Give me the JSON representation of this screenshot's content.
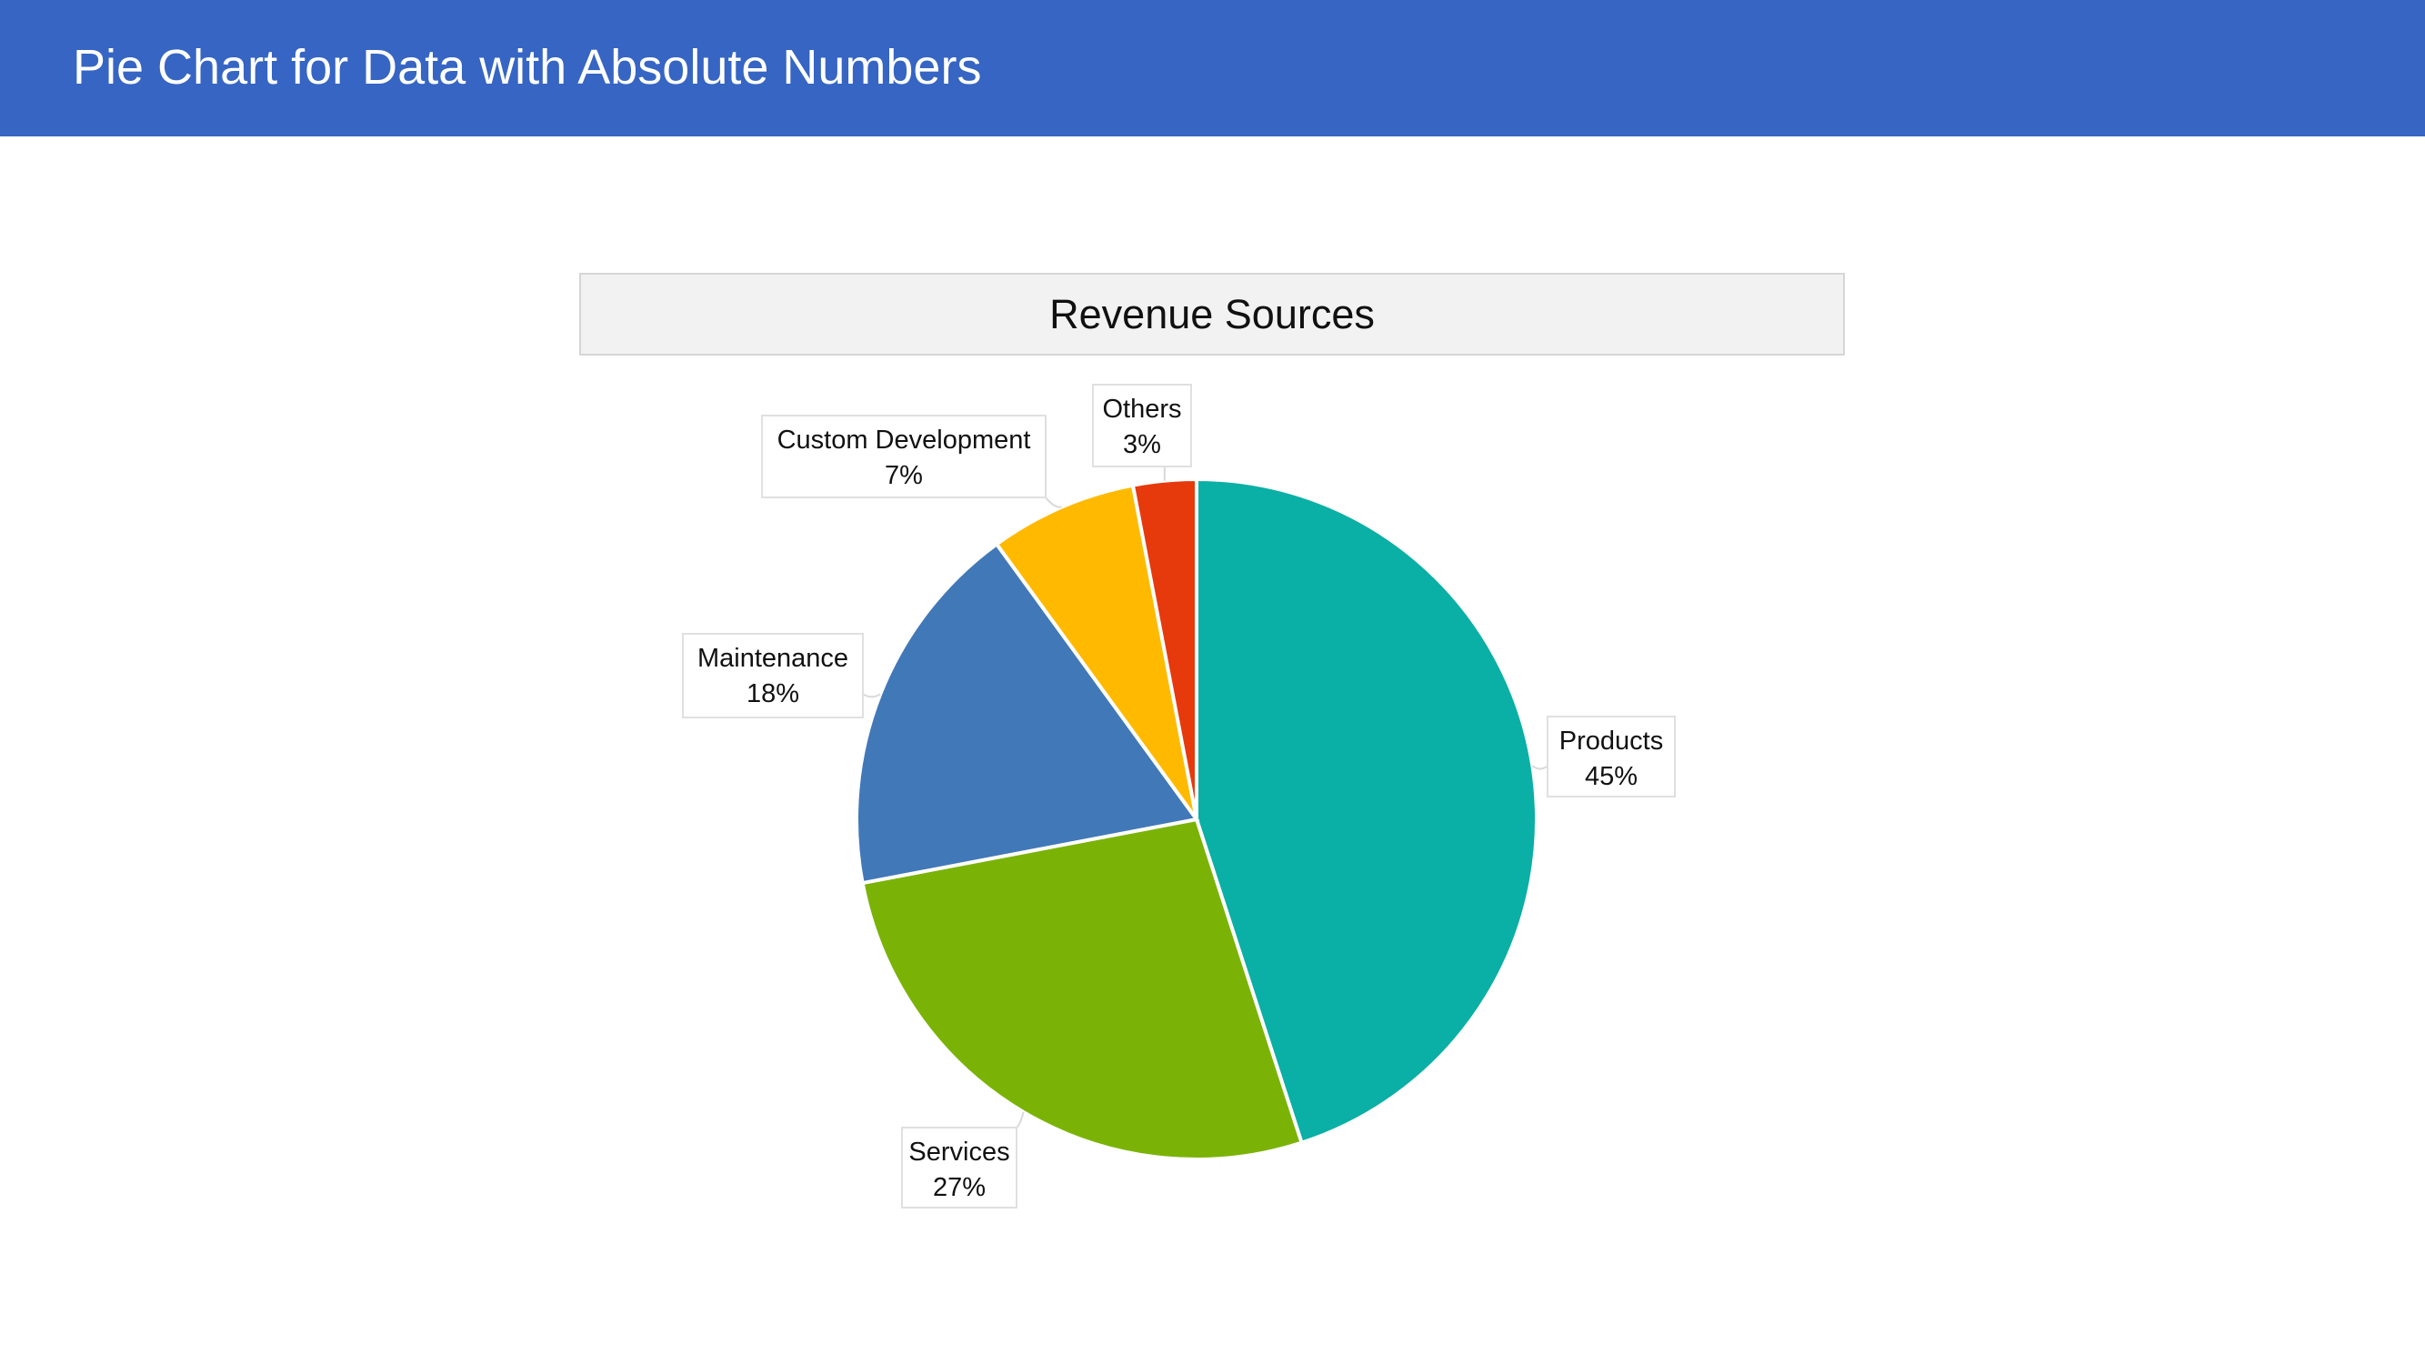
{
  "slide": {
    "title": "Pie Chart for Data with Absolute Numbers"
  },
  "chart_data": {
    "type": "pie",
    "title": "Revenue Sources",
    "categories": [
      "Products",
      "Services",
      "Maintenance",
      "Custom Development",
      "Others"
    ],
    "values": [
      45,
      27,
      18,
      7,
      3
    ],
    "value_labels": [
      "45%",
      "27%",
      "18%",
      "7%",
      "3%"
    ],
    "colors": [
      "#0aafa5",
      "#7ab306",
      "#4178b8",
      "#ffba00",
      "#e63a0c"
    ],
    "start_angle_deg": 0,
    "direction": "clockwise",
    "legend": "none",
    "data_labels": "outside-callouts"
  }
}
